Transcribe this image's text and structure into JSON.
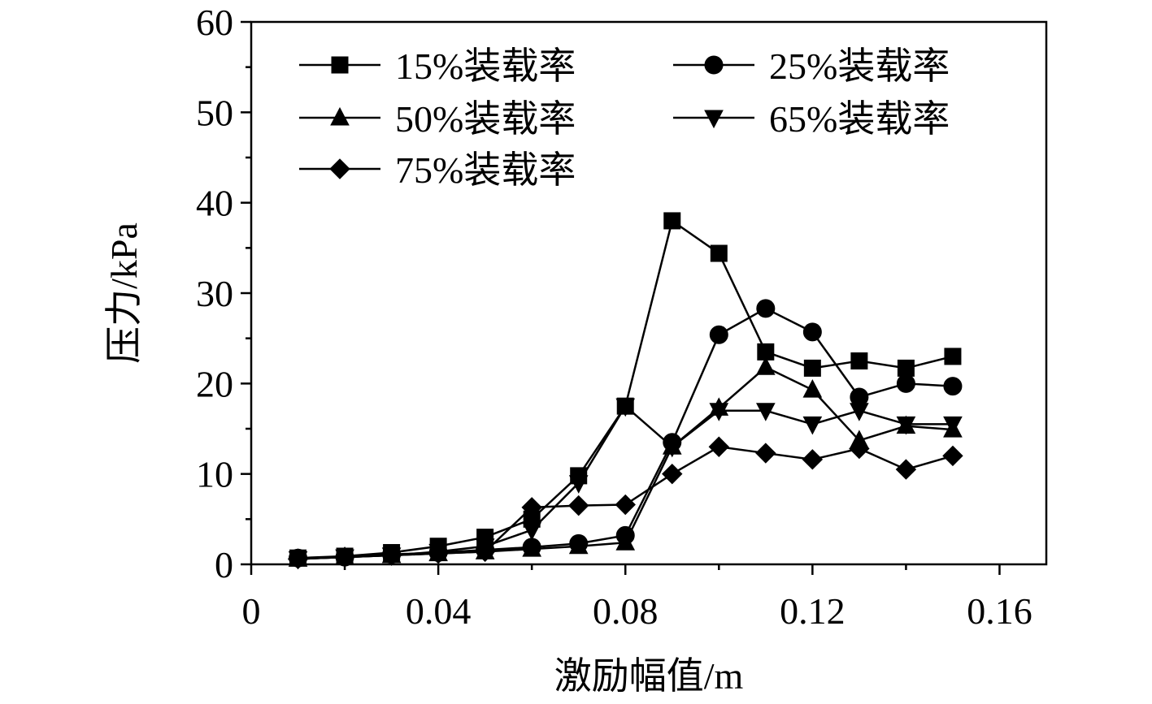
{
  "chart_data": {
    "type": "line",
    "title": "",
    "xlabel": "激励幅值/m",
    "ylabel": "压力/kPa",
    "xlim": [
      0,
      0.17
    ],
    "ylim": [
      0,
      60
    ],
    "xticks": [
      0,
      0.04,
      0.08,
      0.12,
      0.16
    ],
    "xtick_labels": [
      "0",
      "0.04",
      "0.08",
      "0.12",
      "0.16"
    ],
    "yticks": [
      0,
      10,
      20,
      30,
      40,
      50,
      60
    ],
    "ytick_labels": [
      "0",
      "10",
      "20",
      "30",
      "40",
      "50",
      "60"
    ],
    "grid": false,
    "legend_position": "top-left",
    "x": [
      0.01,
      0.02,
      0.03,
      0.04,
      0.05,
      0.06,
      0.07,
      0.08,
      0.09,
      0.1,
      0.11,
      0.12,
      0.13,
      0.14,
      0.15
    ],
    "series": [
      {
        "name": "15%装载率",
        "marker": "square",
        "values": [
          0.7,
          0.9,
          1.3,
          2.0,
          3.0,
          5.0,
          9.8,
          17.5,
          38.0,
          34.4,
          23.5,
          21.7,
          22.5,
          21.7,
          23.0
        ]
      },
      {
        "name": "25%装载率",
        "marker": "circle",
        "values": [
          0.7,
          0.8,
          1.1,
          1.3,
          1.6,
          1.9,
          2.3,
          3.2,
          13.5,
          25.4,
          28.3,
          25.7,
          18.5,
          20.0,
          19.7
        ]
      },
      {
        "name": "50%装载率",
        "marker": "triangle-up",
        "values": [
          0.6,
          0.8,
          1.0,
          1.2,
          1.4,
          1.7,
          2.0,
          2.4,
          13.0,
          17.3,
          21.8,
          19.3,
          13.7,
          15.3,
          14.9
        ]
      },
      {
        "name": "65%装载率",
        "marker": "triangle-down",
        "values": [
          0.6,
          0.8,
          1.0,
          1.4,
          2.0,
          3.8,
          9.0,
          17.5,
          13.0,
          17.0,
          17.0,
          15.5,
          17.0,
          15.5,
          15.5
        ]
      },
      {
        "name": "75%装载率",
        "marker": "diamond",
        "values": [
          0.6,
          0.8,
          1.0,
          1.2,
          1.4,
          6.3,
          6.5,
          6.6,
          10.0,
          13.0,
          12.3,
          11.6,
          12.8,
          10.5,
          12.0
        ]
      }
    ]
  }
}
